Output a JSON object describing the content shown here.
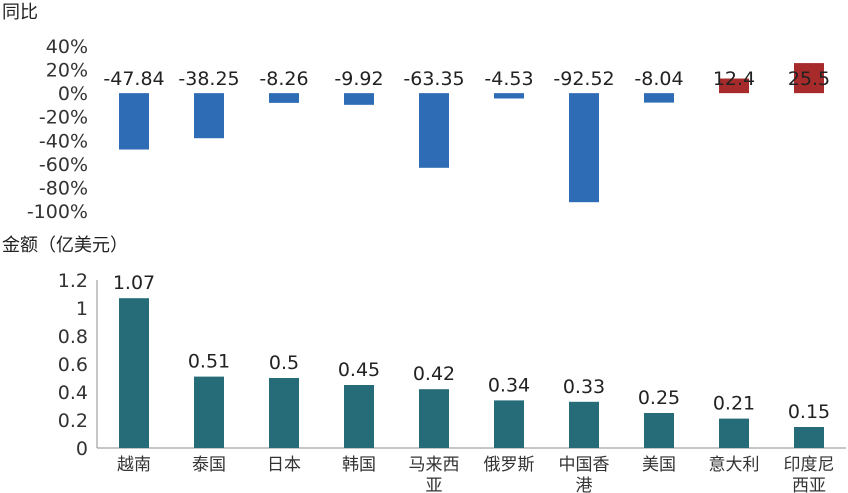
{
  "chart_data": [
    {
      "type": "bar",
      "ylabel": "同比",
      "categories": [
        "越南",
        "泰国",
        "日本",
        "韩国",
        "马来西亚",
        "俄罗斯",
        "中国香港",
        "美国",
        "意大利",
        "印度尼西亚"
      ],
      "values": [
        -47.84,
        -38.25,
        -8.26,
        -9.92,
        -63.35,
        -4.53,
        -92.52,
        -8.04,
        12.4,
        25.5
      ],
      "value_labels": [
        "-47.84",
        "-38.25",
        "-8.26",
        "-9.92",
        "-63.35",
        "-4.53",
        "-92.52",
        "-8.04",
        "12.4",
        "25.5"
      ],
      "ylim": [
        -100,
        40
      ],
      "yticks": [
        40,
        20,
        0,
        -20,
        -40,
        -60,
        -80,
        -100
      ],
      "ytick_labels": [
        "40%",
        "20%",
        "0%",
        "-20%",
        "-40%",
        "-60%",
        "-80%",
        "-100%"
      ],
      "colors": {
        "negative": "#2e6cb5",
        "positive": "#a72b2b"
      },
      "grid": false
    },
    {
      "type": "bar",
      "ylabel": "金额（亿美元）",
      "categories": [
        "越南",
        "泰国",
        "日本",
        "韩国",
        "马来西亚",
        "俄罗斯",
        "中国香港",
        "美国",
        "意大利",
        "印度尼西亚"
      ],
      "category_lines": [
        [
          "越南"
        ],
        [
          "泰国"
        ],
        [
          "日本"
        ],
        [
          "韩国"
        ],
        [
          "马来西",
          "亚"
        ],
        [
          "俄罗斯"
        ],
        [
          "中国香",
          "港"
        ],
        [
          "美国"
        ],
        [
          "意大利"
        ],
        [
          "印度尼",
          "西亚"
        ]
      ],
      "values": [
        1.07,
        0.51,
        0.5,
        0.45,
        0.42,
        0.34,
        0.33,
        0.25,
        0.21,
        0.15
      ],
      "value_labels": [
        "1.07",
        "0.51",
        "0.5",
        "0.45",
        "0.42",
        "0.34",
        "0.33",
        "0.25",
        "0.21",
        "0.15"
      ],
      "ylim": [
        0,
        1.2
      ],
      "yticks": [
        1.2,
        1,
        0.8,
        0.6,
        0.4,
        0.2,
        0
      ],
      "ytick_labels": [
        "1.2",
        "1",
        "0.8",
        "0.6",
        "0.4",
        "0.2",
        "0"
      ],
      "colors": {
        "bar": "#256b78"
      },
      "grid": false
    }
  ]
}
